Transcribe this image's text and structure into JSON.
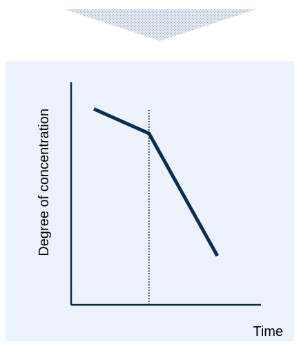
{
  "colors": {
    "panel_background": "#edf3fd",
    "panel_border": "#d9e4f5",
    "axis": "#0d2b4e",
    "series_line": "#0d2b4e",
    "divider_line": "#0d2b4e",
    "arrow_fill": "#8f9fb4",
    "arrow_light": "#e1e7ef"
  },
  "decoration": {
    "arrow_icon": "down-triangle-icon"
  },
  "chart_data": {
    "type": "line",
    "title": "",
    "xlabel": "Time",
    "ylabel": "Degree of concentration",
    "xlim": [
      0,
      10
    ],
    "ylim": [
      0,
      10
    ],
    "grid": false,
    "legend": "none",
    "ticks": "none",
    "series": [
      {
        "values": [
          {
            "x": 1.2,
            "y": 8.8
          },
          {
            "x": 4.1,
            "y": 7.7
          },
          {
            "x": 7.7,
            "y": 2.2
          }
        ]
      }
    ],
    "annotations": [
      {
        "type": "vertical-dashed-line",
        "x": 4.1
      }
    ]
  }
}
